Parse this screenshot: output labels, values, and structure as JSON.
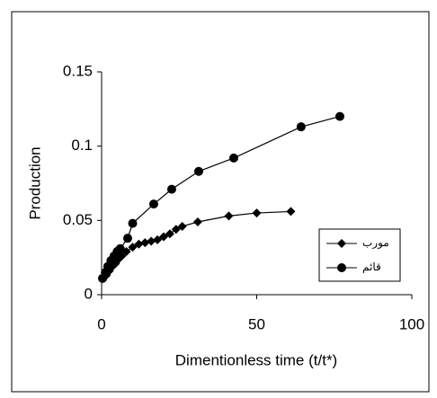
{
  "chart_data": {
    "type": "line",
    "xlabel": "Dimentionless time (t/t*)",
    "ylabel": "Production",
    "xlim": [
      0,
      100
    ],
    "xticks": [
      0,
      50,
      100
    ],
    "ylim": [
      0,
      0.15
    ],
    "yticks": [
      0,
      0.05,
      0.1,
      0.15
    ],
    "legend": "lower right",
    "series": [
      {
        "name": "مورب",
        "color": "#000000",
        "marker": "diamond",
        "x": [
          0.5,
          1.5,
          2.5,
          3.5,
          4.5,
          5.5,
          6.5,
          8,
          10,
          12,
          14,
          16,
          18,
          20,
          22,
          24,
          26,
          31,
          41,
          50,
          61
        ],
        "values": [
          0.011,
          0.013,
          0.016,
          0.019,
          0.021,
          0.024,
          0.026,
          0.029,
          0.032,
          0.034,
          0.035,
          0.036,
          0.037,
          0.039,
          0.041,
          0.044,
          0.046,
          0.049,
          0.053,
          0.055,
          0.056
        ]
      },
      {
        "name": "قائم",
        "color": "#000000",
        "marker": "circle",
        "x": [
          0.3,
          1.2,
          2,
          3,
          4,
          5,
          6,
          8.4,
          10,
          16.8,
          22.6,
          31.3,
          42.6,
          64.3,
          76.8
        ],
        "values": [
          0.011,
          0.015,
          0.019,
          0.023,
          0.026,
          0.029,
          0.031,
          0.038,
          0.048,
          0.061,
          0.071,
          0.083,
          0.092,
          0.113,
          0.12
        ]
      }
    ]
  }
}
